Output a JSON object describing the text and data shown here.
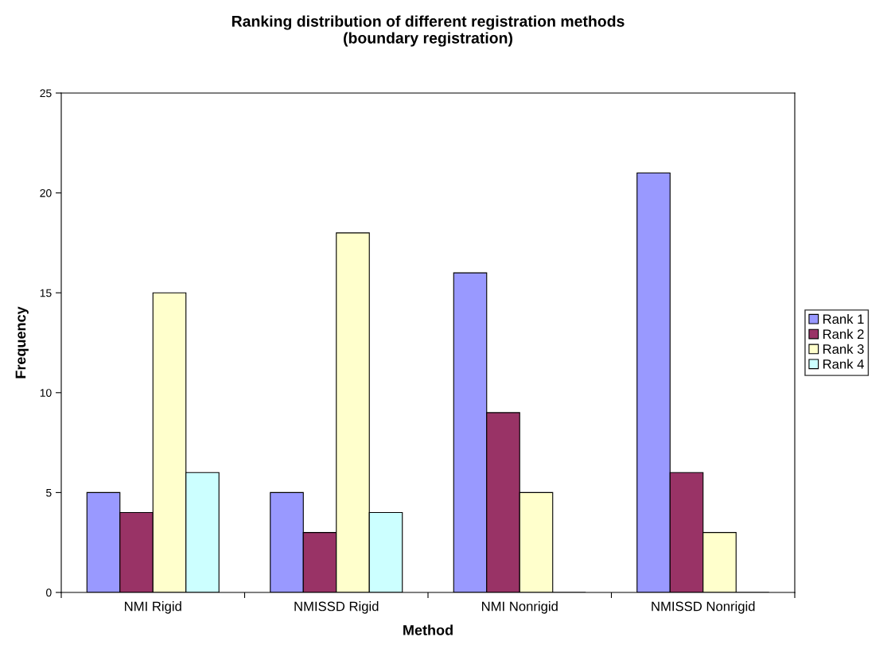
{
  "chart_data": {
    "type": "bar",
    "title": "Ranking distribution of different registration methods\n(boundary registration)",
    "xlabel": "Method",
    "ylabel": "Frequency",
    "categories": [
      "NMI Rigid",
      "NMISSD Rigid",
      "NMI Nonrigid",
      "NMISSD Nonrigid"
    ],
    "series": [
      {
        "name": "Rank 1",
        "color": "#9999ff",
        "values": [
          5,
          5,
          16,
          21
        ]
      },
      {
        "name": "Rank 2",
        "color": "#993366",
        "values": [
          4,
          3,
          9,
          6
        ]
      },
      {
        "name": "Rank 3",
        "color": "#ffffcc",
        "values": [
          15,
          18,
          5,
          3
        ]
      },
      {
        "name": "Rank 4",
        "color": "#ccffff",
        "values": [
          6,
          4,
          0,
          0
        ]
      }
    ],
    "ylim": [
      0,
      25
    ],
    "yticks": [
      0,
      5,
      10,
      15,
      20,
      25
    ],
    "grid": false,
    "legend": "right"
  }
}
